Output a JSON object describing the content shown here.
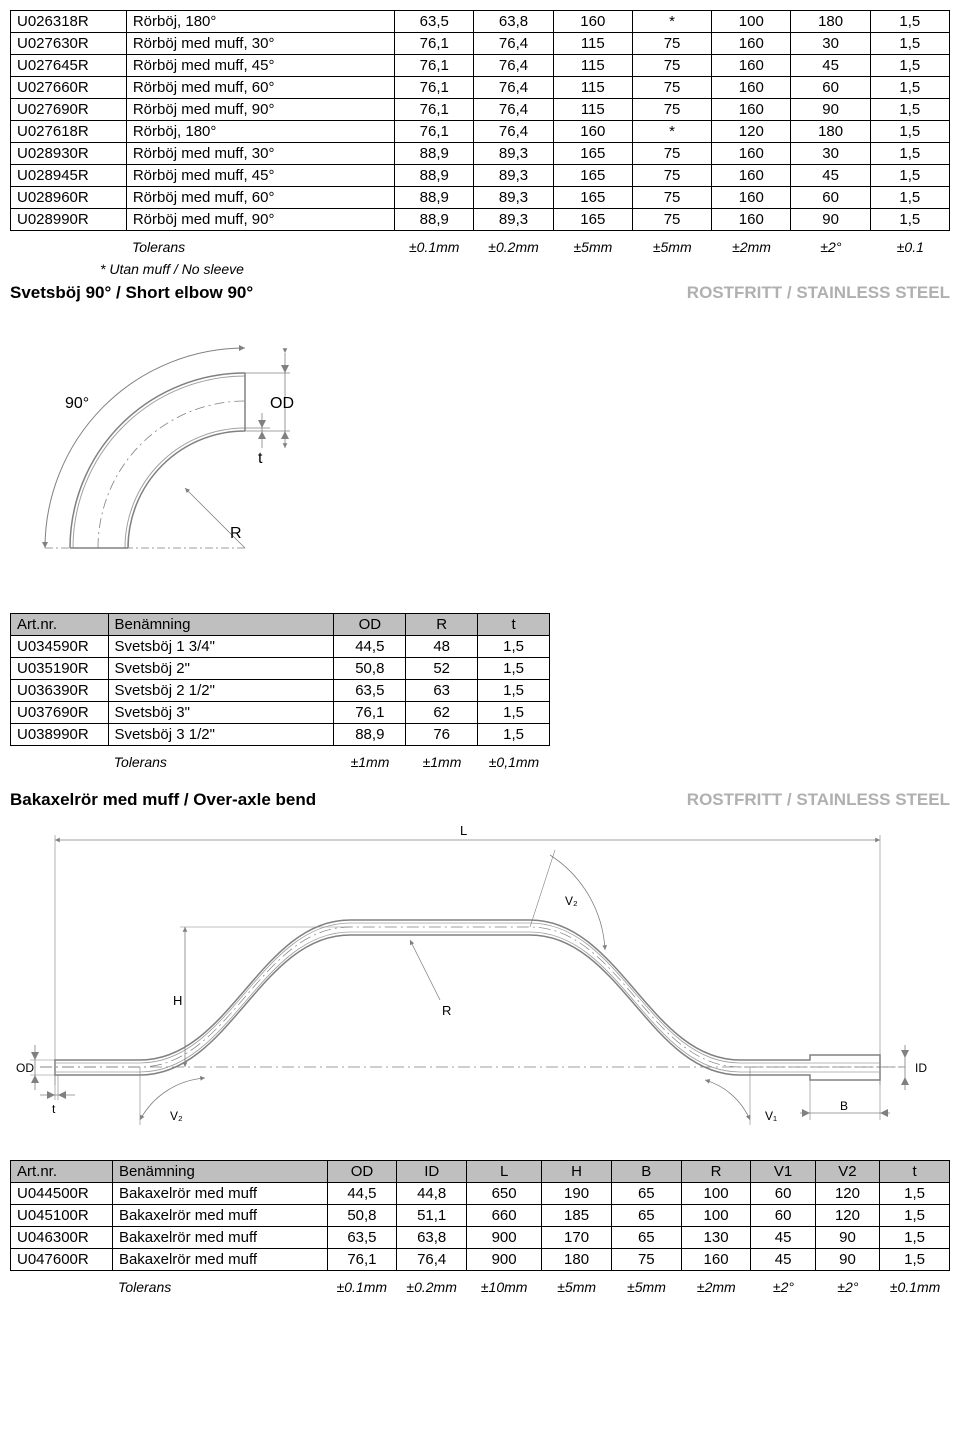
{
  "table1": {
    "rows": [
      [
        "U026318R",
        "Rörböj, 180°",
        "63,5",
        "63,8",
        "160",
        "*",
        "100",
        "180",
        "1,5"
      ],
      [
        "U027630R",
        "Rörböj med muff, 30°",
        "76,1",
        "76,4",
        "115",
        "75",
        "160",
        "30",
        "1,5"
      ],
      [
        "U027645R",
        "Rörböj med muff, 45°",
        "76,1",
        "76,4",
        "115",
        "75",
        "160",
        "45",
        "1,5"
      ],
      [
        "U027660R",
        "Rörböj med muff, 60°",
        "76,1",
        "76,4",
        "115",
        "75",
        "160",
        "60",
        "1,5"
      ],
      [
        "U027690R",
        "Rörböj med muff, 90°",
        "76,1",
        "76,4",
        "115",
        "75",
        "160",
        "90",
        "1,5"
      ],
      [
        "U027618R",
        "Rörböj, 180°",
        "76,1",
        "76,4",
        "160",
        "*",
        "120",
        "180",
        "1,5"
      ],
      [
        "U028930R",
        "Rörböj med muff, 30°",
        "88,9",
        "89,3",
        "165",
        "75",
        "160",
        "30",
        "1,5"
      ],
      [
        "U028945R",
        "Rörböj med muff, 45°",
        "88,9",
        "89,3",
        "165",
        "75",
        "160",
        "45",
        "1,5"
      ],
      [
        "U028960R",
        "Rörböj med muff, 60°",
        "88,9",
        "89,3",
        "165",
        "75",
        "160",
        "60",
        "1,5"
      ],
      [
        "U028990R",
        "Rörböj med muff, 90°",
        "88,9",
        "89,3",
        "165",
        "75",
        "160",
        "90",
        "1,5"
      ]
    ],
    "tolerans_label": "Tolerans",
    "tolerans": [
      "±0.1mm",
      "±0.2mm",
      "±5mm",
      "±5mm",
      "±2mm",
      "±2°",
      "±0.1"
    ],
    "footnote": "* Utan muff / No sleeve",
    "col_widths": [
      "95px",
      "220px",
      "65px",
      "65px",
      "65px",
      "65px",
      "65px",
      "65px",
      "65px"
    ]
  },
  "section2": {
    "title_left": "Svetsböj 90° / Short elbow 90°",
    "title_right": "ROSTFRITT / STAINLESS STEEL"
  },
  "diagram1": {
    "labels": {
      "angle": "90°",
      "OD": "OD",
      "t": "t",
      "R": "R"
    },
    "stroke": "#808080",
    "thin_stroke": "#a0a0a0"
  },
  "table2": {
    "headers": [
      "Art.nr.",
      "Benämning",
      "OD",
      "R",
      "t"
    ],
    "rows": [
      [
        "U034590R",
        "Svetsböj 1 3/4\"",
        "44,5",
        "48",
        "1,5"
      ],
      [
        "U035190R",
        "Svetsböj 2\"",
        "50,8",
        "52",
        "1,5"
      ],
      [
        "U036390R",
        "Svetsböj 2 1/2\"",
        "63,5",
        "63",
        "1,5"
      ],
      [
        "U037690R",
        "Svetsböj 3\"",
        "76,1",
        "62",
        "1,5"
      ],
      [
        "U038990R",
        "Svetsböj 3 1/2\"",
        "88,9",
        "76",
        "1,5"
      ]
    ],
    "tolerans_label": "Tolerans",
    "tolerans": [
      "±1mm",
      "±1mm",
      "±0,1mm"
    ],
    "col_widths": [
      "95px",
      "220px",
      "70px",
      "70px",
      "70px"
    ]
  },
  "section3": {
    "title_left": "Bakaxelrör med muff / Over-axle bend",
    "title_right": "ROSTFRITT / STAINLESS STEEL"
  },
  "diagram2": {
    "labels": {
      "L": "L",
      "V2": "V₂",
      "H": "H",
      "R": "R",
      "OD": "OD",
      "ID": "ID",
      "t": "t",
      "V1": "V₁",
      "B": "B"
    },
    "stroke": "#808080"
  },
  "table3": {
    "headers": [
      "Art.nr.",
      "Benämning",
      "OD",
      "ID",
      "L",
      "H",
      "B",
      "R",
      "V1",
      "V2",
      "t"
    ],
    "rows": [
      [
        "U044500R",
        "Bakaxelrör med muff",
        "44,5",
        "44,8",
        "650",
        "190",
        "65",
        "100",
        "60",
        "120",
        "1,5"
      ],
      [
        "U045100R",
        "Bakaxelrör med muff",
        "50,8",
        "51,1",
        "660",
        "185",
        "65",
        "100",
        "60",
        "120",
        "1,5"
      ],
      [
        "U046300R",
        "Bakaxelrör med muff",
        "63,5",
        "63,8",
        "900",
        "170",
        "65",
        "130",
        "45",
        "90",
        "1,5"
      ],
      [
        "U047600R",
        "Bakaxelrör med muff",
        "76,1",
        "76,4",
        "900",
        "180",
        "75",
        "160",
        "45",
        "90",
        "1,5"
      ]
    ],
    "tolerans_label": "Tolerans",
    "tolerans": [
      "±0.1mm",
      "±0.2mm",
      "±10mm",
      "±5mm",
      "±5mm",
      "±2mm",
      "±2°",
      "±2°",
      "±0.1mm"
    ],
    "col_widths": [
      "95px",
      "200px",
      "65px",
      "65px",
      "70px",
      "65px",
      "65px",
      "65px",
      "60px",
      "60px",
      "65px"
    ]
  }
}
